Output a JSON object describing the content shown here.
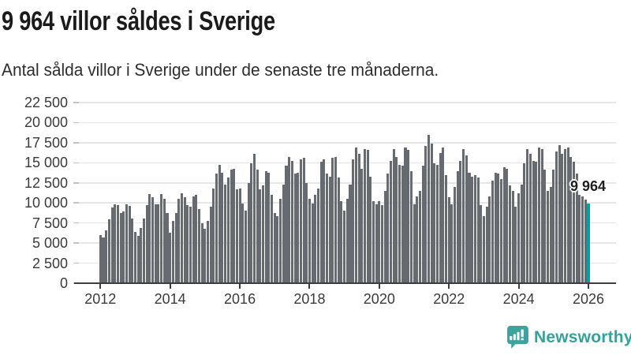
{
  "header": {
    "title": "9 964 villor såldes i Sverige",
    "subtitle": "Antal sålda villor i Sverige under de senaste tre månaderna."
  },
  "chart_data": {
    "type": "bar",
    "title": "9 964 villor såldes i Sverige",
    "subtitle": "Antal sålda villor i Sverige under de senaste tre månaderna.",
    "unit": "sålda villor (rullande 3 månader)",
    "x_start": "2012-01",
    "x_end": "2026-01",
    "frequency": "monthly",
    "ylim": [
      0,
      22500
    ],
    "grid": true,
    "values": [
      5950,
      5720,
      6600,
      7910,
      9480,
      9870,
      9710,
      8790,
      8990,
      9870,
      9640,
      8070,
      6370,
      5850,
      6860,
      8070,
      9770,
      11110,
      10690,
      9870,
      9870,
      11080,
      10520,
      8790,
      6270,
      7750,
      8700,
      10520,
      11180,
      10690,
      9710,
      9540,
      10850,
      11010,
      9220,
      7420,
      6760,
      7750,
      9540,
      11830,
      13630,
      14770,
      13790,
      12320,
      13140,
      14120,
      14280,
      11670,
      11830,
      9880,
      9050,
      12480,
      14930,
      16080,
      14120,
      11670,
      12160,
      13950,
      13790,
      11010,
      8730,
      8400,
      10520,
      12320,
      14610,
      15750,
      15260,
      13630,
      13790,
      15420,
      15590,
      12480,
      10520,
      9970,
      11010,
      11830,
      15100,
      15420,
      13630,
      13300,
      15650,
      15750,
      13140,
      10200,
      9050,
      10520,
      12320,
      15420,
      16890,
      16080,
      14280,
      16730,
      16570,
      13300,
      10200,
      9870,
      10200,
      9710,
      11500,
      13630,
      15260,
      16730,
      15750,
      14770,
      14610,
      16890,
      16570,
      13950,
      9870,
      10850,
      11500,
      14610,
      17060,
      18430,
      17390,
      14930,
      14770,
      16240,
      16890,
      13460,
      10690,
      9870,
      11990,
      13950,
      15260,
      16730,
      15910,
      13790,
      13300,
      13460,
      13140,
      9710,
      8400,
      9540,
      10850,
      12810,
      13790,
      13630,
      12970,
      14450,
      14280,
      12160,
      11500,
      9540,
      11180,
      12320,
      14930,
      16730,
      16080,
      15260,
      15100,
      16890,
      16730,
      14120,
      11500,
      11990,
      14100,
      16400,
      17200,
      16080,
      16700,
      16890,
      15750,
      15100,
      13630,
      11010,
      10850,
      10400,
      9964
    ],
    "highlight_index": 168,
    "highlight_value": 9964,
    "annotation": {
      "label": "9 964"
    },
    "y_axis": {
      "tick_values": [
        0,
        2500,
        5000,
        7500,
        10000,
        12500,
        15000,
        17500,
        20000,
        22500
      ],
      "tick_labels": [
        "0",
        "2 500",
        "5 000",
        "7 500",
        "10 000",
        "12 500",
        "15 000",
        "17 500",
        "20 000",
        "22 500"
      ]
    },
    "x_axis": {
      "tick_years": [
        2012,
        2014,
        2016,
        2018,
        2020,
        2022,
        2024,
        2026
      ],
      "tick_labels": [
        "2012",
        "2014",
        "2016",
        "2018",
        "2020",
        "2022",
        "2024",
        "2026"
      ]
    },
    "colors": {
      "bar": "#676b71",
      "highlight": "#00a0a1",
      "gridline": "#e6e6e6",
      "axis": "#3d3d3d"
    },
    "legend": null
  },
  "footer": {
    "brand": "Newsworthy",
    "logo_color": "#3ba49e"
  }
}
